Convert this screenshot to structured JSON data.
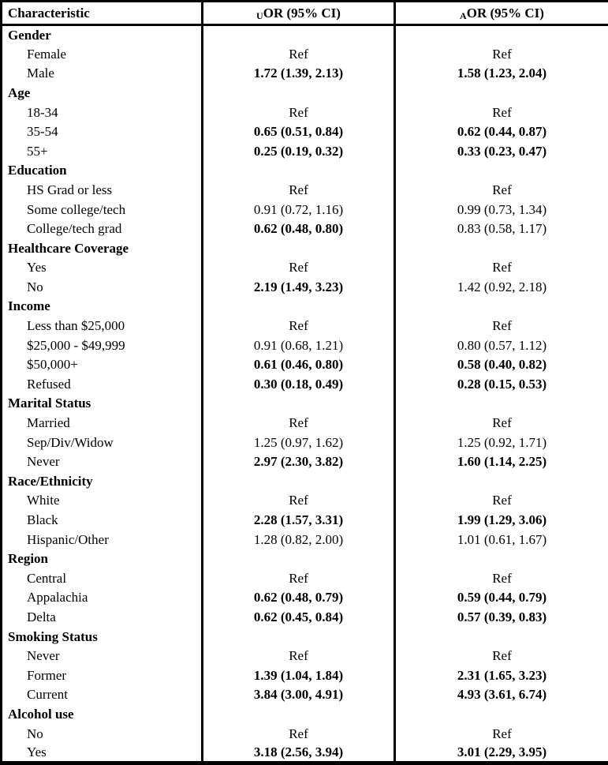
{
  "table": {
    "columns": [
      {
        "label": "Characteristic"
      },
      {
        "prefix": "U",
        "label": "OR (95% CI)"
      },
      {
        "prefix": "A",
        "label": "OR (95% CI)"
      }
    ],
    "sections": [
      {
        "name": "Gender",
        "rows": [
          {
            "label": "Female",
            "uor": "Ref",
            "uor_bold": false,
            "aor": "Ref",
            "aor_bold": false
          },
          {
            "label": "Male",
            "uor": "1.72 (1.39, 2.13)",
            "uor_bold": true,
            "aor": "1.58 (1.23, 2.04)",
            "aor_bold": true
          }
        ]
      },
      {
        "name": "Age",
        "rows": [
          {
            "label": "18-34",
            "uor": "Ref",
            "uor_bold": false,
            "aor": "Ref",
            "aor_bold": false
          },
          {
            "label": "35-54",
            "uor": "0.65 (0.51, 0.84)",
            "uor_bold": true,
            "aor": "0.62 (0.44, 0.87)",
            "aor_bold": true
          },
          {
            "label": "55+",
            "uor": "0.25 (0.19, 0.32)",
            "uor_bold": true,
            "aor": "0.33 (0.23, 0.47)",
            "aor_bold": true
          }
        ]
      },
      {
        "name": "Education",
        "rows": [
          {
            "label": "HS Grad or less",
            "uor": "Ref",
            "uor_bold": false,
            "aor": "Ref",
            "aor_bold": false
          },
          {
            "label": "Some college/tech",
            "uor": "0.91 (0.72, 1.16)",
            "uor_bold": false,
            "aor": "0.99 (0.73, 1.34)",
            "aor_bold": false
          },
          {
            "label": "College/tech grad",
            "uor": "0.62 (0.48, 0.80)",
            "uor_bold": true,
            "aor": "0.83 (0.58, 1.17)",
            "aor_bold": false
          }
        ]
      },
      {
        "name": "Healthcare Coverage",
        "rows": [
          {
            "label": "Yes",
            "uor": "Ref",
            "uor_bold": false,
            "aor": "Ref",
            "aor_bold": false
          },
          {
            "label": "No",
            "uor": "2.19 (1.49, 3.23)",
            "uor_bold": true,
            "aor": "1.42 (0.92, 2.18)",
            "aor_bold": false
          }
        ]
      },
      {
        "name": "Income",
        "rows": [
          {
            "label": "Less than $25,000",
            "uor": "Ref",
            "uor_bold": false,
            "aor": "Ref",
            "aor_bold": false
          },
          {
            "label": "$25,000 - $49,999",
            "uor": "0.91 (0.68, 1.21)",
            "uor_bold": false,
            "aor": "0.80 (0.57, 1.12)",
            "aor_bold": false
          },
          {
            "label": "$50,000+",
            "uor": "0.61 (0.46, 0.80)",
            "uor_bold": true,
            "aor": "0.58 (0.40, 0.82)",
            "aor_bold": true
          },
          {
            "label": "Refused",
            "uor": "0.30 (0.18, 0.49)",
            "uor_bold": true,
            "aor": "0.28 (0.15, 0.53)",
            "aor_bold": true
          }
        ]
      },
      {
        "name": "Marital Status",
        "rows": [
          {
            "label": "Married",
            "uor": "Ref",
            "uor_bold": false,
            "aor": "Ref",
            "aor_bold": false
          },
          {
            "label": "Sep/Div/Widow",
            "uor": "1.25 (0.97, 1.62)",
            "uor_bold": false,
            "aor": "1.25 (0.92, 1.71)",
            "aor_bold": false
          },
          {
            "label": "Never",
            "uor": "2.97 (2.30, 3.82)",
            "uor_bold": true,
            "aor": "1.60 (1.14, 2.25)",
            "aor_bold": true
          }
        ]
      },
      {
        "name": "Race/Ethnicity",
        "rows": [
          {
            "label": "White",
            "uor": "Ref",
            "uor_bold": false,
            "aor": "Ref",
            "aor_bold": false
          },
          {
            "label": "Black",
            "uor": "2.28 (1.57, 3.31)",
            "uor_bold": true,
            "aor": "1.99 (1.29, 3.06)",
            "aor_bold": true
          },
          {
            "label": "Hispanic/Other",
            "uor": "1.28 (0.82, 2.00)",
            "uor_bold": false,
            "aor": "1.01 (0.61, 1.67)",
            "aor_bold": false
          }
        ]
      },
      {
        "name": "Region",
        "rows": [
          {
            "label": "Central",
            "uor": "Ref",
            "uor_bold": false,
            "aor": "Ref",
            "aor_bold": false
          },
          {
            "label": "Appalachia",
            "uor": "0.62 (0.48, 0.79)",
            "uor_bold": true,
            "aor": "0.59 (0.44, 0.79)",
            "aor_bold": true
          },
          {
            "label": "Delta",
            "uor": "0.62 (0.45, 0.84)",
            "uor_bold": true,
            "aor": "0.57 (0.39, 0.83)",
            "aor_bold": true
          }
        ]
      },
      {
        "name": "Smoking Status",
        "rows": [
          {
            "label": "Never",
            "uor": "Ref",
            "uor_bold": false,
            "aor": "Ref",
            "aor_bold": false
          },
          {
            "label": "Former",
            "uor": "1.39 (1.04, 1.84)",
            "uor_bold": true,
            "aor": "2.31 (1.65, 3.23)",
            "aor_bold": true
          },
          {
            "label": "Current",
            "uor": "3.84 (3.00, 4.91)",
            "uor_bold": true,
            "aor": "4.93 (3.61, 6.74)",
            "aor_bold": true
          }
        ]
      },
      {
        "name": "Alcohol use",
        "rows": [
          {
            "label": "No",
            "uor": "Ref",
            "uor_bold": false,
            "aor": "Ref",
            "aor_bold": false
          },
          {
            "label": "Yes",
            "uor": "3.18 (2.56, 3.94)",
            "uor_bold": true,
            "aor": "3.01 (2.29, 3.95)",
            "aor_bold": true
          }
        ]
      }
    ]
  }
}
